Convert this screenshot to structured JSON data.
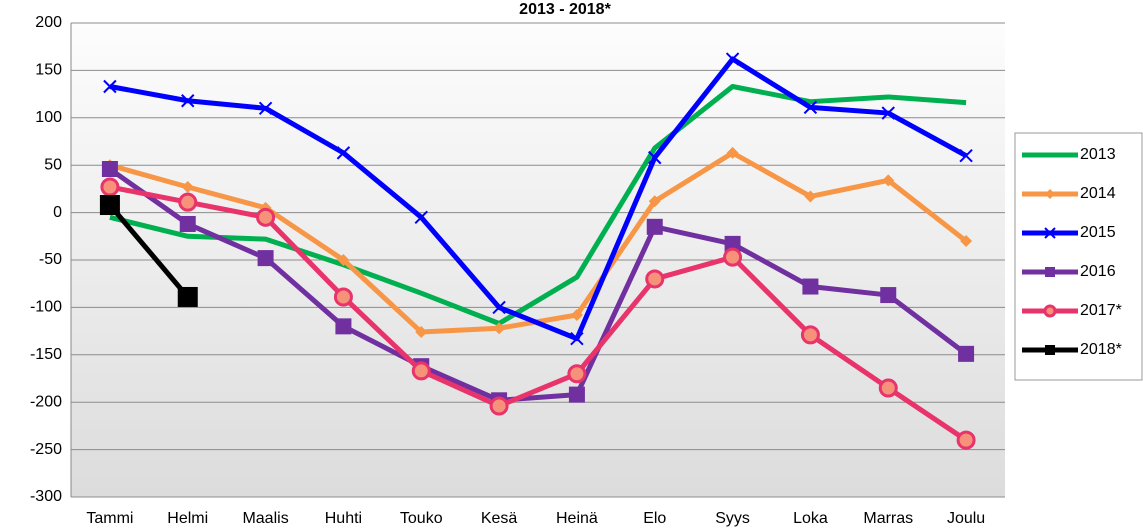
{
  "chart_data": {
    "type": "line",
    "title": "2013 - 2018*",
    "categories": [
      "Tammi",
      "Helmi",
      "Maalis",
      "Huhti",
      "Touko",
      "Kesä",
      "Heinä",
      "Elo",
      "Syys",
      "Loka",
      "Marras",
      "Joulu"
    ],
    "ylim": [
      -300,
      200
    ],
    "yticks": [
      -300,
      -250,
      -200,
      -150,
      -100,
      -50,
      0,
      50,
      100,
      150,
      200
    ],
    "grid": true,
    "legend": "right",
    "series": [
      {
        "name": "2013",
        "color": "#00b050",
        "marker": "none",
        "values": [
          -5,
          -25,
          -28,
          -55,
          -85,
          -117,
          -68,
          68,
          133,
          117,
          122,
          116
        ]
      },
      {
        "name": "2014",
        "color": "#f79646",
        "marker": "diamond",
        "values": [
          50,
          27,
          5,
          -50,
          -126,
          -122,
          -108,
          12,
          63,
          17,
          34,
          -30
        ]
      },
      {
        "name": "2015",
        "color": "#0000ff",
        "marker": "x",
        "values": [
          133,
          118,
          110,
          63,
          -5,
          -100,
          -133,
          58,
          162,
          111,
          105,
          60
        ]
      },
      {
        "name": "2016",
        "color": "#7030a0",
        "marker": "square",
        "values": [
          46,
          -12,
          -48,
          -120,
          -162,
          -198,
          -192,
          -15,
          -33,
          -78,
          -87,
          -149
        ]
      },
      {
        "name": "2017*",
        "color": "#e8336b",
        "marker": "circle",
        "values": [
          27,
          11,
          -5,
          -89,
          -167,
          -204,
          -170,
          -70,
          -47,
          -129,
          -185,
          -240
        ]
      },
      {
        "name": "2018*",
        "color": "#000000",
        "marker": "square",
        "values": [
          8,
          -89,
          null,
          null,
          null,
          null,
          null,
          null,
          null,
          null,
          null,
          null
        ]
      }
    ]
  }
}
